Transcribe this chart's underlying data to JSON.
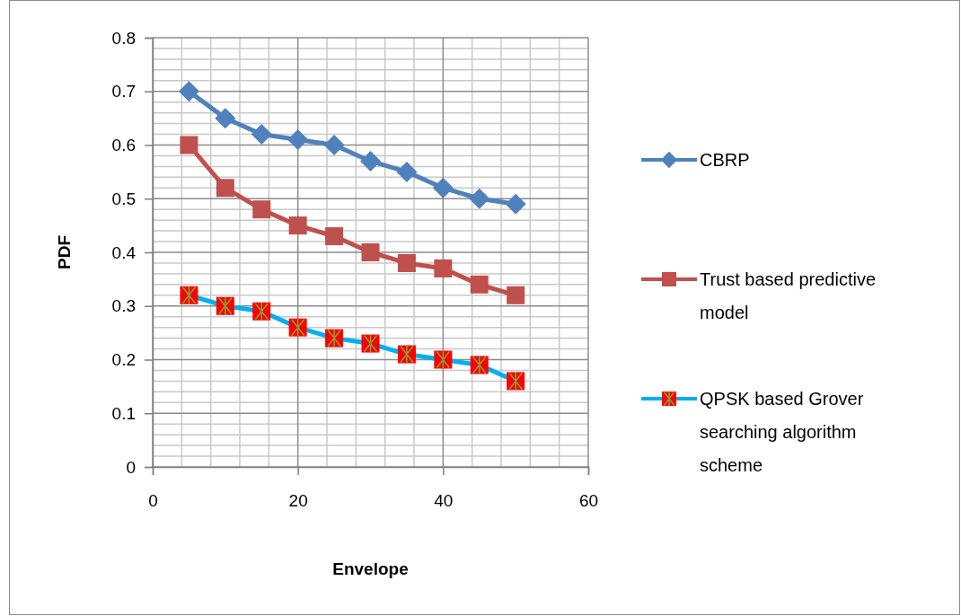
{
  "chart_data": {
    "type": "line",
    "xlabel": "Envelope",
    "ylabel": "PDF",
    "x": [
      5,
      10,
      15,
      20,
      25,
      30,
      35,
      40,
      45,
      50
    ],
    "series": [
      {
        "name": "CBRP",
        "color": "#4f81bd",
        "marker": "diamond",
        "values": [
          0.7,
          0.65,
          0.62,
          0.61,
          0.6,
          0.57,
          0.55,
          0.52,
          0.5,
          0.49
        ]
      },
      {
        "name": "Trust based predictive model",
        "color": "#c0504d",
        "marker": "square",
        "values": [
          0.6,
          0.52,
          0.48,
          0.45,
          0.43,
          0.4,
          0.38,
          0.37,
          0.34,
          0.32
        ]
      },
      {
        "name": "QPSK based Grover searching algorithm scheme",
        "color": "#00b0f0",
        "marker": "square",
        "colors": [
          "#ff0000",
          "#ff0000",
          "#ff0000",
          "#ff0000",
          "#ff0000",
          "#ff0000",
          "#ff0000",
          "#ff0000",
          "#ff0000",
          "#ff0000"
        ],
        "values": [
          0.32,
          0.3,
          0.29,
          0.26,
          0.24,
          0.23,
          0.21,
          0.2,
          0.19,
          0.16
        ]
      }
    ],
    "xlim": [
      0,
      60
    ],
    "xticks": [
      0,
      20,
      40,
      60
    ],
    "ylim": [
      0,
      0.8
    ],
    "yticks": [
      0,
      0.1,
      0.2,
      0.3,
      0.4,
      0.5,
      0.6,
      0.7,
      0.8
    ],
    "grid": true,
    "legend": "right",
    "line_style": "solid"
  }
}
